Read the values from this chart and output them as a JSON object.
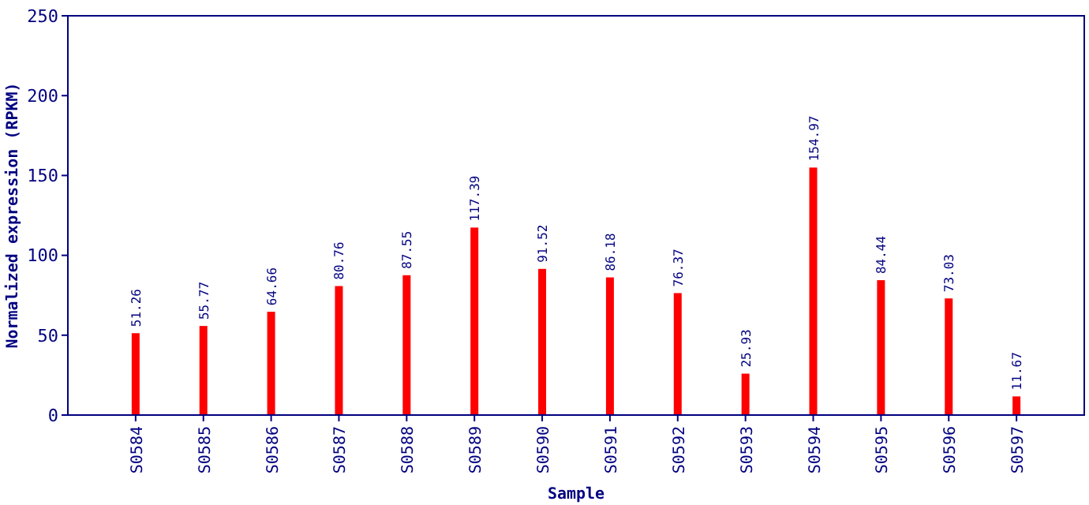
{
  "chart_data": {
    "type": "bar",
    "xlabel": "Sample",
    "ylabel": "Normalized expression (RPKM)",
    "categories": [
      "S0584",
      "S0585",
      "S0586",
      "S0587",
      "S0588",
      "S0589",
      "S0590",
      "S0591",
      "S0592",
      "S0593",
      "S0594",
      "S0595",
      "S0596",
      "S0597"
    ],
    "values": [
      51.26,
      55.77,
      64.66,
      80.76,
      87.55,
      117.39,
      91.52,
      86.18,
      76.37,
      25.93,
      154.97,
      84.44,
      73.03,
      11.67
    ],
    "color": "#ff0000",
    "ylim": [
      0,
      250
    ],
    "yticks": [
      0,
      50,
      100,
      150,
      200,
      250
    ],
    "data_labels": true,
    "grid": false
  }
}
